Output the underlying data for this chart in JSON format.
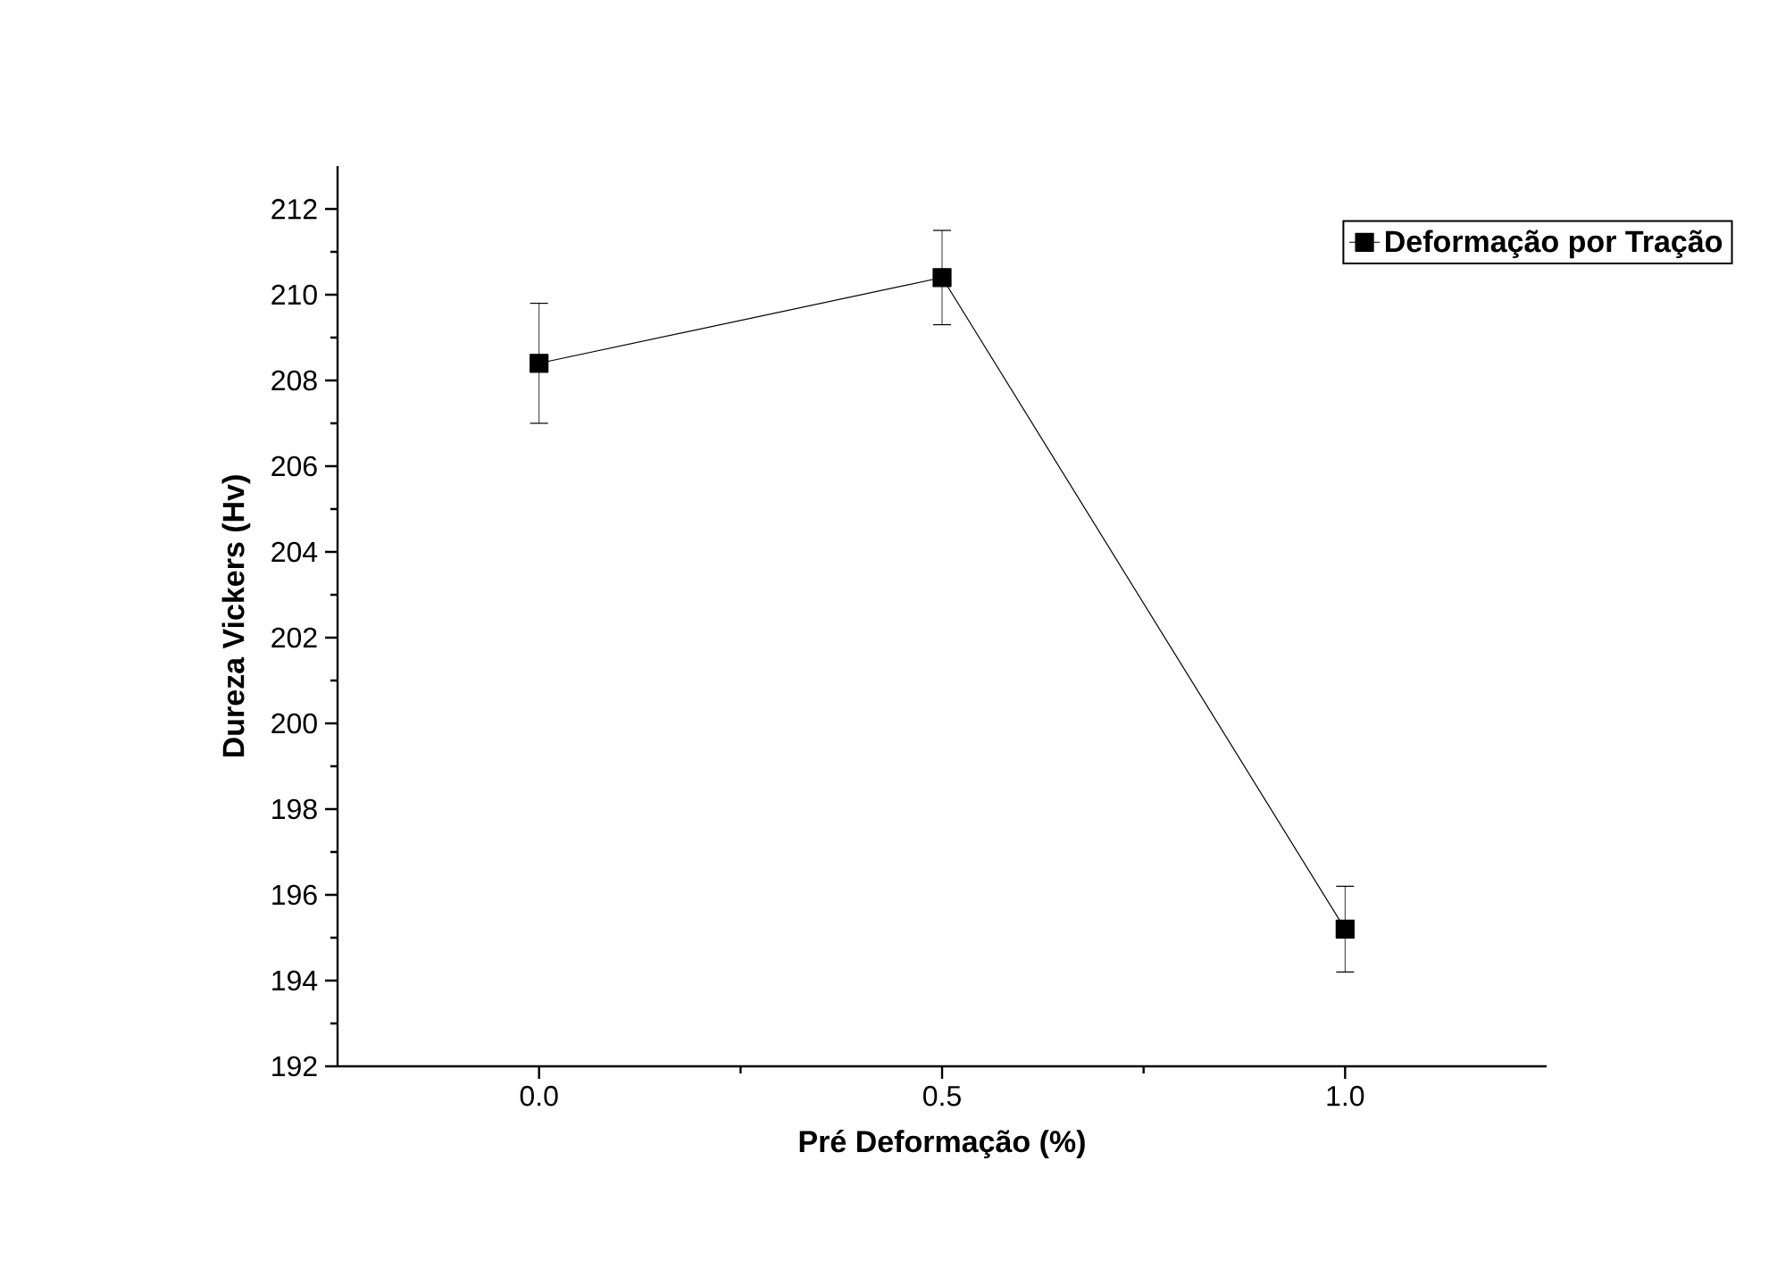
{
  "chart_data": {
    "type": "line",
    "xlabel": "Pré Deformação (%)",
    "ylabel": "Dureza Vickers (Hv)",
    "x": [
      0.0,
      0.5,
      1.0
    ],
    "series": [
      {
        "name": "Deformação por Tração",
        "color": "#000000",
        "values": [
          208.4,
          210.4,
          195.2
        ],
        "errors": [
          1.4,
          1.1,
          1.0
        ]
      }
    ],
    "xlim": [
      -0.25,
      1.25
    ],
    "xticks": [
      {
        "value": 0.0,
        "label": "0.0"
      },
      {
        "value": 0.5,
        "label": "0.5"
      },
      {
        "value": 1.0,
        "label": "1.0"
      }
    ],
    "ylim": [
      192,
      213
    ],
    "yticks": [
      192,
      194,
      196,
      198,
      200,
      202,
      204,
      206,
      208,
      210,
      212
    ],
    "grid": false,
    "legend": "top right",
    "marker": "square",
    "line_style": "solid"
  }
}
